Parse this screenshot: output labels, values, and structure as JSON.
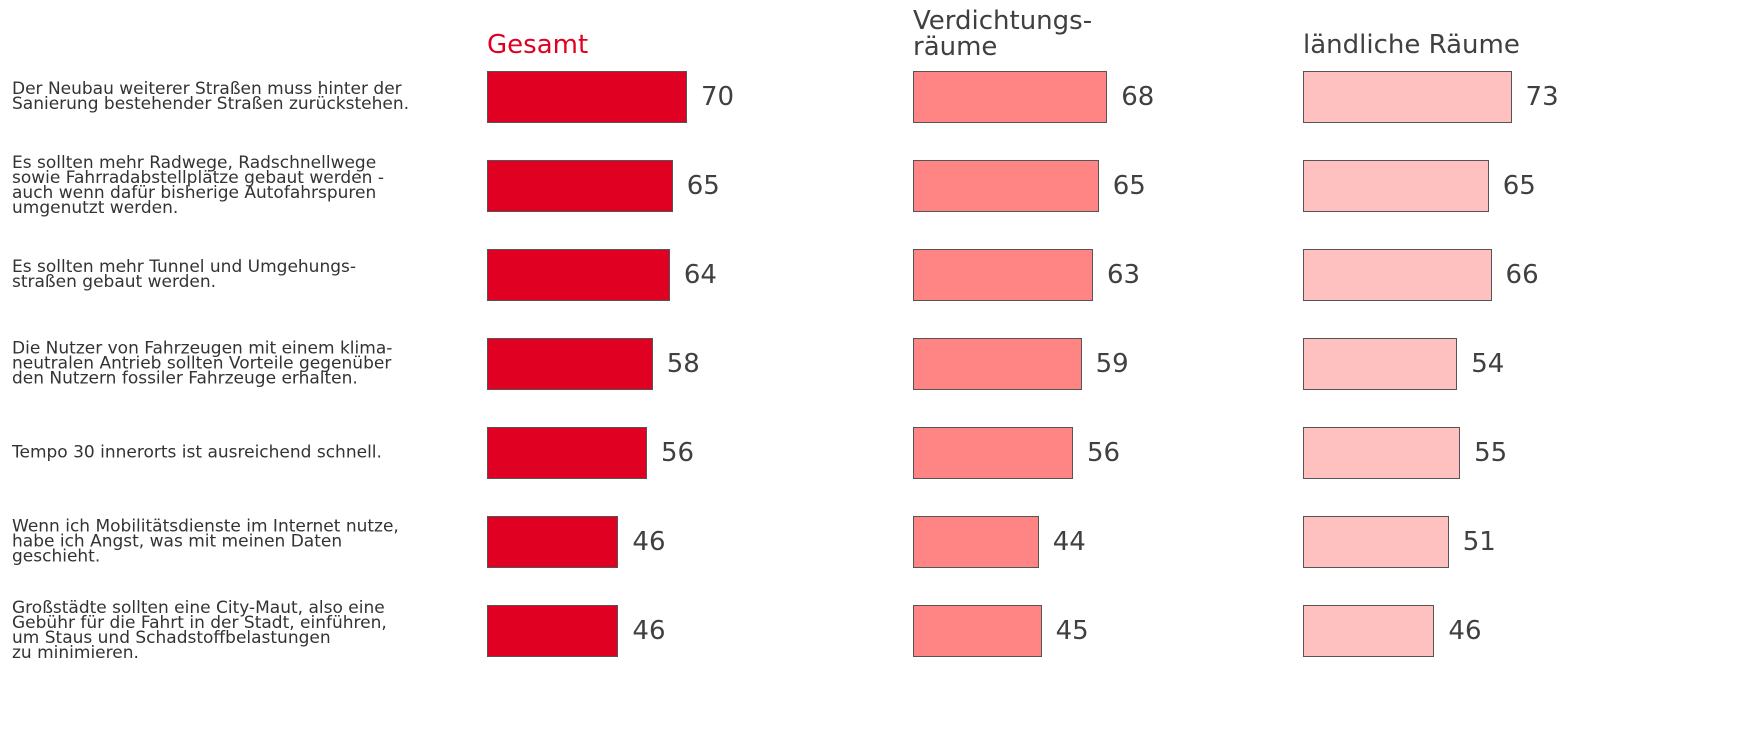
{
  "chart_data": {
    "type": "bar",
    "categories": [
      "Der Neubau weiterer Straßen muss hinter der\nSanierung bestehender Straßen zurückstehen.",
      "Es sollten mehr Radwege, Radschnellwege\nsowie Fahrradabstellplätze gebaut werden -\nauch wenn dafür bisherige Autofahrspuren\numgenutzt werden.",
      "Es sollten mehr Tunnel und Umgehungs-\nstraßen gebaut werden.",
      "Die Nutzer von Fahrzeugen mit einem klima-\nneutralen Antrieb sollten Vorteile gegenüber\nden Nutzern fossiler Fahrzeuge erhalten.",
      "Tempo 30 innerorts ist ausreichend schnell.",
      "Wenn ich Mobilitätsdienste im Internet nutze,\nhabe ich Angst, was mit meinen Daten\ngeschieht.",
      "Großstädte sollten eine City-Maut, also eine\nGebühr für die Fahrt in der Stadt, einführen,\num Staus und Schadstoffbelastungen\nzu minimieren."
    ],
    "series": [
      {
        "name": "Gesamt",
        "color": "#e00022",
        "values": [
          70,
          65,
          64,
          58,
          56,
          46,
          46
        ]
      },
      {
        "name": "Verdichtungs-\nräume",
        "color": "#ff8585",
        "values": [
          68,
          65,
          63,
          59,
          56,
          44,
          45
        ]
      },
      {
        "name": "ländliche Räume",
        "color": "#ffc0c0",
        "values": [
          73,
          65,
          66,
          54,
          55,
          51,
          46
        ]
      }
    ]
  }
}
